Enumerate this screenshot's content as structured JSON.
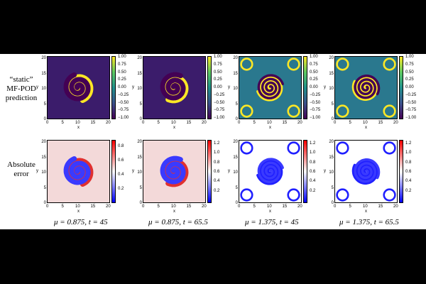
{
  "row_labels": {
    "top": [
      "“static”",
      "MF-POD",
      "prediction"
    ],
    "bottom": [
      "Absolute",
      "error"
    ]
  },
  "axis": {
    "x_label": "x",
    "y_label": "y",
    "ticks": [
      "0",
      "5",
      "10",
      "15",
      "20"
    ]
  },
  "colorbars": {
    "prediction": [
      "1.00",
      "0.75",
      "0.50",
      "0.25",
      "0.00",
      "−0.25",
      "−0.50",
      "−0.75",
      "−1.00"
    ],
    "error_1": [
      "0.8",
      "0.6",
      "0.4",
      "0.2"
    ],
    "error_2": [
      "1.2",
      "1.0",
      "0.8",
      "0.6",
      "0.4",
      "0.2"
    ],
    "error_3": [
      "1.2",
      "1.0",
      "0.8",
      "0.6",
      "0.4",
      "0.2"
    ],
    "error_4": [
      "1.2",
      "1.0",
      "0.8",
      "0.6",
      "0.4",
      "0.2"
    ]
  },
  "captions": [
    "μ = 0.875,  t = 45",
    "μ = 0.875,  t = 65.5",
    "μ = 1.375,  t = 45",
    "μ = 1.375,  t = 65.5"
  ],
  "colors": {
    "viridis_dark": "#440154",
    "viridis_teal": "#21918c",
    "viridis_yellow": "#fde725",
    "bwr_blue": "#0000ff",
    "bwr_white": "#ffffff",
    "bwr_red": "#ff0000"
  }
}
